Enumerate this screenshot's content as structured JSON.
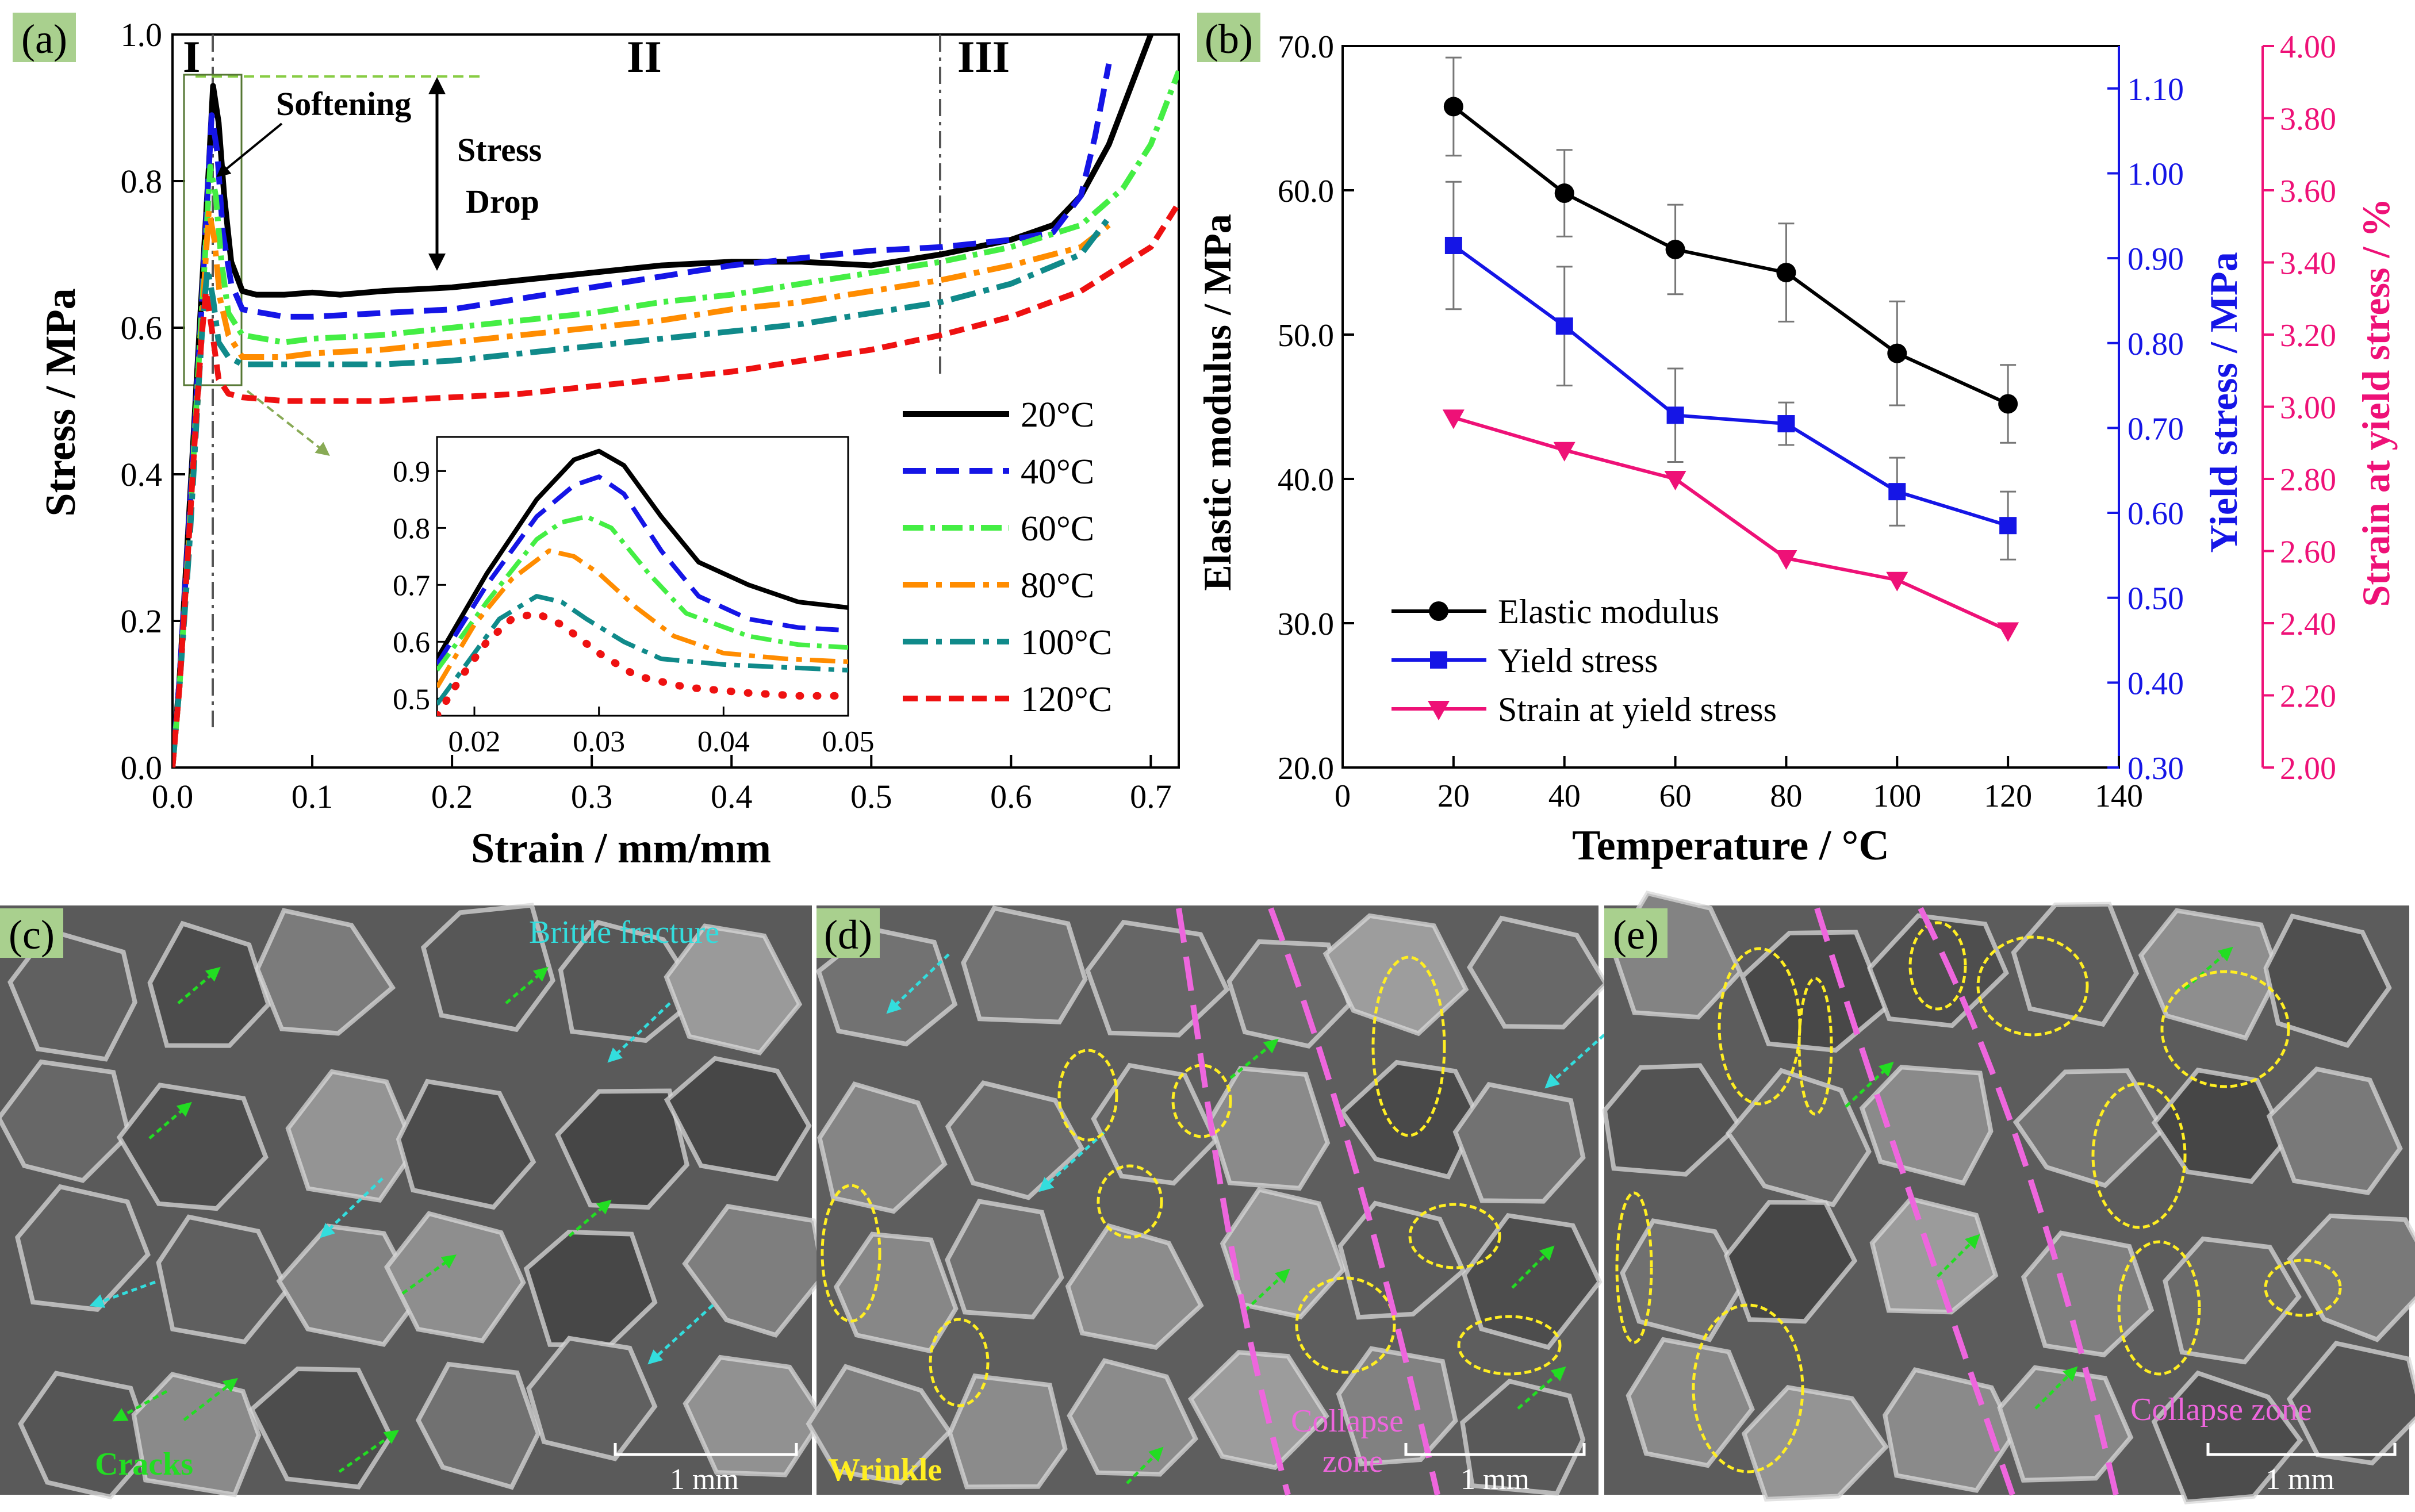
{
  "panel_tags": {
    "a": "(a)",
    "b": "(b)",
    "c": "(c)",
    "d": "(d)",
    "e": "(e)"
  },
  "colors": {
    "t20": "#000000",
    "t40": "#1515e6",
    "t60": "#44ee44",
    "t80": "#ff8c00",
    "t100": "#108a8a",
    "t120": "#ee1111",
    "modulus": "#000000",
    "yield": "#1515e6",
    "strain": "#ee1177",
    "tag_bg": "#a9d08e",
    "crack": "#22dd22",
    "brittle": "#33dddd",
    "wrinkle": "#ffee22",
    "collapse": "#ee66dd"
  },
  "chart_data": [
    {
      "type": "line",
      "title": "",
      "xlabel": "Strain / mm/mm",
      "ylabel": "Stress / MPa",
      "xlim": [
        0,
        0.72
      ],
      "ylim": [
        0,
        1.0
      ],
      "xticks": [
        "0.0",
        "0.1",
        "0.2",
        "0.3",
        "0.4",
        "0.5",
        "0.6",
        "0.7"
      ],
      "yticks": [
        "0.0",
        "0.2",
        "0.4",
        "0.6",
        "0.8",
        "1.0"
      ],
      "regions": [
        "I",
        "II",
        "III"
      ],
      "annotations": {
        "softening": "Softening",
        "stress_drop_1": "Stress",
        "stress_drop_2": "Drop"
      },
      "legend_position": "right-center",
      "series": [
        {
          "name": "20°C",
          "x": [
            0,
            0.005,
            0.012,
            0.02,
            0.026,
            0.029,
            0.033,
            0.037,
            0.042,
            0.05,
            0.06,
            0.08,
            0.1,
            0.12,
            0.15,
            0.2,
            0.25,
            0.3,
            0.35,
            0.4,
            0.45,
            0.5,
            0.55,
            0.6,
            0.63,
            0.65,
            0.67,
            0.69,
            0.7
          ],
          "y": [
            0,
            0.12,
            0.35,
            0.62,
            0.82,
            0.93,
            0.88,
            0.78,
            0.69,
            0.65,
            0.645,
            0.645,
            0.648,
            0.645,
            0.65,
            0.655,
            0.665,
            0.675,
            0.685,
            0.69,
            0.69,
            0.685,
            0.7,
            0.72,
            0.74,
            0.78,
            0.85,
            0.95,
            1.0
          ]
        },
        {
          "name": "40°C",
          "x": [
            0,
            0.005,
            0.012,
            0.02,
            0.025,
            0.028,
            0.032,
            0.036,
            0.042,
            0.05,
            0.08,
            0.1,
            0.15,
            0.2,
            0.25,
            0.3,
            0.35,
            0.4,
            0.45,
            0.5,
            0.55,
            0.6,
            0.63,
            0.65,
            0.66,
            0.67
          ],
          "y": [
            0,
            0.12,
            0.34,
            0.6,
            0.78,
            0.89,
            0.84,
            0.73,
            0.66,
            0.625,
            0.615,
            0.615,
            0.62,
            0.625,
            0.64,
            0.655,
            0.67,
            0.685,
            0.695,
            0.705,
            0.71,
            0.72,
            0.73,
            0.78,
            0.86,
            0.96
          ]
        },
        {
          "name": "60°C",
          "x": [
            0,
            0.005,
            0.012,
            0.019,
            0.024,
            0.027,
            0.031,
            0.035,
            0.04,
            0.05,
            0.08,
            0.1,
            0.15,
            0.2,
            0.25,
            0.3,
            0.35,
            0.4,
            0.45,
            0.5,
            0.55,
            0.6,
            0.65,
            0.68,
            0.7,
            0.72
          ],
          "y": [
            0,
            0.11,
            0.32,
            0.56,
            0.72,
            0.82,
            0.78,
            0.69,
            0.62,
            0.59,
            0.58,
            0.585,
            0.59,
            0.6,
            0.61,
            0.62,
            0.635,
            0.645,
            0.66,
            0.675,
            0.69,
            0.71,
            0.74,
            0.79,
            0.85,
            0.95
          ]
        },
        {
          "name": "80°C",
          "x": [
            0,
            0.005,
            0.012,
            0.019,
            0.023,
            0.026,
            0.03,
            0.034,
            0.04,
            0.05,
            0.08,
            0.1,
            0.15,
            0.2,
            0.25,
            0.3,
            0.35,
            0.4,
            0.45,
            0.5,
            0.55,
            0.6,
            0.65,
            0.67
          ],
          "y": [
            0,
            0.11,
            0.31,
            0.53,
            0.67,
            0.76,
            0.72,
            0.64,
            0.59,
            0.56,
            0.56,
            0.565,
            0.57,
            0.58,
            0.59,
            0.6,
            0.61,
            0.625,
            0.635,
            0.65,
            0.665,
            0.685,
            0.71,
            0.74
          ]
        },
        {
          "name": "100°C",
          "x": [
            0,
            0.005,
            0.012,
            0.018,
            0.022,
            0.025,
            0.029,
            0.033,
            0.04,
            0.05,
            0.08,
            0.1,
            0.15,
            0.2,
            0.25,
            0.3,
            0.35,
            0.4,
            0.45,
            0.5,
            0.55,
            0.6,
            0.65,
            0.67
          ],
          "y": [
            0,
            0.11,
            0.3,
            0.5,
            0.62,
            0.68,
            0.64,
            0.58,
            0.56,
            0.55,
            0.55,
            0.55,
            0.55,
            0.555,
            0.565,
            0.575,
            0.585,
            0.595,
            0.605,
            0.62,
            0.635,
            0.66,
            0.7,
            0.75
          ]
        },
        {
          "name": "120°C",
          "x": [
            0,
            0.005,
            0.011,
            0.017,
            0.021,
            0.024,
            0.028,
            0.033,
            0.04,
            0.05,
            0.08,
            0.1,
            0.15,
            0.2,
            0.25,
            0.3,
            0.35,
            0.4,
            0.45,
            0.5,
            0.55,
            0.6,
            0.65,
            0.7,
            0.72
          ],
          "y": [
            0,
            0.11,
            0.29,
            0.48,
            0.59,
            0.65,
            0.6,
            0.53,
            0.51,
            0.505,
            0.5,
            0.5,
            0.5,
            0.505,
            0.51,
            0.52,
            0.53,
            0.54,
            0.555,
            0.57,
            0.59,
            0.615,
            0.65,
            0.71,
            0.77
          ]
        }
      ],
      "inset": {
        "xlim": [
          0.017,
          0.05
        ],
        "ylim": [
          0.47,
          0.96
        ],
        "xticks": [
          "0.02",
          "0.03",
          "0.04",
          "0.05"
        ],
        "yticks": [
          "0.5",
          "0.6",
          "0.7",
          "0.8",
          "0.9"
        ],
        "series": [
          {
            "name": "20°C",
            "x": [
              0.017,
              0.021,
              0.025,
              0.028,
              0.03,
              0.032,
              0.035,
              0.038,
              0.042,
              0.046,
              0.05
            ],
            "y": [
              0.57,
              0.72,
              0.85,
              0.92,
              0.935,
              0.91,
              0.82,
              0.74,
              0.7,
              0.67,
              0.66
            ]
          },
          {
            "name": "40°C",
            "x": [
              0.017,
              0.021,
              0.025,
              0.028,
              0.03,
              0.032,
              0.035,
              0.038,
              0.042,
              0.046,
              0.05
            ],
            "y": [
              0.56,
              0.7,
              0.82,
              0.875,
              0.89,
              0.86,
              0.76,
              0.68,
              0.64,
              0.625,
              0.62
            ]
          },
          {
            "name": "60°C",
            "x": [
              0.017,
              0.021,
              0.025,
              0.027,
              0.029,
              0.031,
              0.034,
              0.037,
              0.042,
              0.046,
              0.05
            ],
            "y": [
              0.55,
              0.67,
              0.78,
              0.81,
              0.82,
              0.8,
              0.72,
              0.65,
              0.61,
              0.595,
              0.59
            ]
          },
          {
            "name": "80°C",
            "x": [
              0.017,
              0.02,
              0.023,
              0.026,
              0.028,
              0.03,
              0.033,
              0.036,
              0.04,
              0.045,
              0.05
            ],
            "y": [
              0.52,
              0.63,
              0.71,
              0.76,
              0.75,
              0.72,
              0.66,
              0.61,
              0.58,
              0.57,
              0.565
            ]
          },
          {
            "name": "100°C",
            "x": [
              0.017,
              0.02,
              0.022,
              0.025,
              0.027,
              0.029,
              0.032,
              0.035,
              0.04,
              0.045,
              0.05
            ],
            "y": [
              0.49,
              0.58,
              0.64,
              0.68,
              0.67,
              0.64,
              0.6,
              0.57,
              0.56,
              0.555,
              0.55
            ]
          },
          {
            "name": "120°C",
            "x": [
              0.017,
              0.019,
              0.021,
              0.023,
              0.025,
              0.027,
              0.03,
              0.033,
              0.037,
              0.042,
              0.046,
              0.05
            ],
            "y": [
              0.47,
              0.54,
              0.6,
              0.64,
              0.65,
              0.63,
              0.58,
              0.54,
              0.52,
              0.51,
              0.505,
              0.505
            ]
          }
        ]
      }
    },
    {
      "type": "line",
      "title": "",
      "xlabel": "Temperature / °C",
      "xlim": [
        0,
        140
      ],
      "xticks": [
        "0",
        "20",
        "40",
        "60",
        "80",
        "100",
        "120",
        "140"
      ],
      "axes": [
        {
          "name": "Elastic modulus / MPa",
          "side": "left",
          "ylim": [
            20,
            70
          ],
          "ticks": [
            "20.0",
            "30.0",
            "40.0",
            "50.0",
            "60.0",
            "70.0"
          ]
        },
        {
          "name": "Yield stress / MPa",
          "side": "right",
          "ylim": [
            0.3,
            1.15
          ],
          "ticks": [
            "0.30",
            "0.40",
            "0.50",
            "0.60",
            "0.70",
            "0.80",
            "0.90",
            "1.00",
            "1.10"
          ]
        },
        {
          "name": "Strain at yield stress / %",
          "side": "right-outer",
          "ylim": [
            2.0,
            4.0
          ],
          "ticks": [
            "2.00",
            "2.20",
            "2.40",
            "2.60",
            "2.80",
            "3.00",
            "3.20",
            "3.40",
            "3.60",
            "3.80",
            "4.00"
          ]
        }
      ],
      "legend_position": "bottom-left",
      "series": [
        {
          "name": "Elastic modulus",
          "axis": 0,
          "marker": "circle",
          "x": [
            20,
            40,
            60,
            80,
            100,
            120
          ],
          "y": [
            65.8,
            59.8,
            55.9,
            54.3,
            48.7,
            45.2
          ],
          "err": [
            3.4,
            3.0,
            3.1,
            3.4,
            3.6,
            2.7
          ]
        },
        {
          "name": "Yield stress",
          "axis": 1,
          "marker": "square",
          "x": [
            20,
            40,
            60,
            80,
            100,
            120
          ],
          "y": [
            0.915,
            0.82,
            0.715,
            0.705,
            0.625,
            0.585
          ],
          "err": [
            0.075,
            0.07,
            0.055,
            0.025,
            0.04,
            0.04
          ]
        },
        {
          "name": "Strain at yield stress",
          "axis": 2,
          "marker": "triangle-down",
          "x": [
            20,
            40,
            60,
            80,
            100,
            120
          ],
          "y": [
            2.97,
            2.88,
            2.8,
            2.58,
            2.52,
            2.38
          ]
        }
      ]
    }
  ],
  "sem_c": {
    "brittle_label": "Brittle fracture",
    "crack_label": "Cracks",
    "scale": "1 mm"
  },
  "sem_d": {
    "wrinkle_label": "Wrinkle",
    "collapse_1": "Collapse",
    "collapse_2": "zone",
    "scale": "1 mm"
  },
  "sem_e": {
    "collapse_label": "Collapse zone",
    "scale": "1 mm"
  }
}
